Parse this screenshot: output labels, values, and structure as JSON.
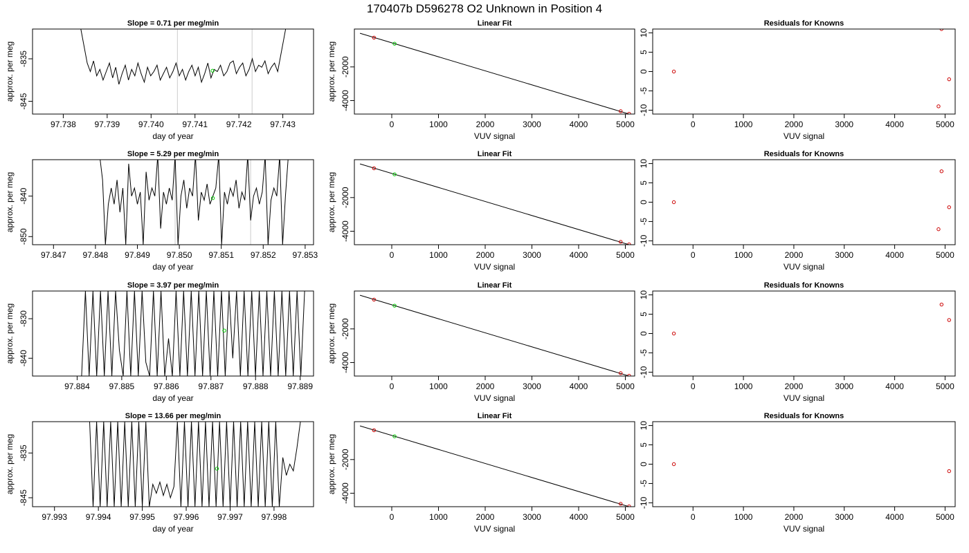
{
  "figure": {
    "title": "170407b     D596278   O2 Unknown in Position  4"
  },
  "colors": {
    "line": "#000000",
    "known": "#cc0000",
    "unknown": "#00cc00",
    "vline": "#cccccc",
    "box": "#000000"
  },
  "rows": [
    {
      "trace": {
        "title": "Slope =  0.71  per meg/min",
        "xlabel": "day of year",
        "ylabel": "approx. per meg",
        "xlim": [
          97.7373,
          97.7437
        ],
        "ylim": [
          -848.0,
          -828.0
        ],
        "xticks": [
          "97.738",
          "97.739",
          "97.740",
          "97.741",
          "97.742",
          "97.743"
        ],
        "yticks": [
          "-835",
          "-845"
        ],
        "vlines": [
          97.7406,
          97.7423
        ],
        "unknown_point": [
          97.7414,
          -837.8
        ],
        "x_start": 97.7384,
        "x_end": 97.7431,
        "y_base": -838.5,
        "amp": 2.0,
        "edge": "both",
        "series": [
          -828.0,
          -832.0,
          -836.0,
          -838.0,
          -835.5,
          -839.0,
          -837.5,
          -840.0,
          -838.0,
          -836.0,
          -839.5,
          -837.0,
          -841.0,
          -838.5,
          -836.5,
          -840.0,
          -837.5,
          -839.0,
          -836.0,
          -838.5,
          -840.5,
          -837.0,
          -839.0,
          -838.0,
          -836.5,
          -840.0,
          -838.5,
          -837.0,
          -839.5,
          -838.0,
          -836.0,
          -839.0,
          -837.5,
          -840.0,
          -838.0,
          -836.5,
          -839.0,
          -837.0,
          -840.5,
          -838.5,
          -836.0,
          -839.5,
          -837.5,
          -838.0,
          -836.5,
          -839.0,
          -838.0,
          -836.0,
          -835.5,
          -838.5,
          -837.0,
          -836.0,
          -839.0,
          -837.5,
          -835.0,
          -838.0,
          -836.5,
          -837.0,
          -835.5,
          -838.5,
          -837.0,
          -836.0,
          -838.0,
          -834.0,
          -830.0,
          -826.0
        ]
      },
      "fit": {
        "title": "Linear Fit",
        "xlabel": "VUV signal",
        "ylabel": "approx. per meg",
        "xlim": [
          -800,
          5200
        ],
        "ylim": [
          -4800,
          250
        ],
        "xticks": [
          "0",
          "1000",
          "2000",
          "3000",
          "4000",
          "5000"
        ],
        "yticks": [
          "-2000",
          "-4000"
        ],
        "line": [
          [
            -680,
            0
          ],
          [
            5080,
            -4800
          ]
        ],
        "knowns": [
          [
            -380,
            -260
          ],
          [
            4900,
            -4630
          ],
          [
            5080,
            -4780
          ]
        ],
        "unknown": [
          60,
          -620
        ]
      },
      "resid": {
        "title": "Residuals for Knowns",
        "xlabel": "VUV signal",
        "ylabel": "",
        "xlim": [
          -800,
          5200
        ],
        "ylim": [
          -11,
          11
        ],
        "xticks": [
          "0",
          "1000",
          "2000",
          "3000",
          "4000",
          "5000"
        ],
        "yticks": [
          "10",
          "5",
          "0",
          "-5",
          "-10"
        ],
        "points": [
          [
            -380,
            0
          ],
          [
            4930,
            11
          ],
          [
            5080,
            -2
          ],
          [
            4870,
            -9
          ]
        ]
      }
    },
    {
      "trace": {
        "title": "Slope =  5.29  per meg/min",
        "xlabel": "day of year",
        "ylabel": "approx. per meg",
        "xlim": [
          97.8465,
          97.8532
        ],
        "ylim": [
          -852.0,
          -831.0
        ],
        "xticks": [
          "97.847",
          "97.848",
          "97.849",
          "97.850",
          "97.851",
          "97.852",
          "97.853"
        ],
        "yticks": [
          "-840",
          "-850"
        ],
        "vlines": [
          97.8499,
          97.8517
        ],
        "unknown_point": [
          97.8508,
          -840.5
        ],
        "x_start": 97.8481,
        "x_end": 97.8526,
        "y_base": -840.0,
        "amp": 3.0,
        "edge": "both",
        "series": [
          -830.0,
          -836.0,
          -852.0,
          -842.0,
          -838.0,
          -842.0,
          -836.0,
          -844.0,
          -838.0,
          -852.0,
          -832.0,
          -840.0,
          -838.0,
          -842.0,
          -839.0,
          -852.0,
          -834.0,
          -841.0,
          -838.0,
          -840.0,
          -830.0,
          -848.0,
          -839.0,
          -842.0,
          -838.0,
          -841.0,
          -830.0,
          -852.0,
          -840.0,
          -836.0,
          -843.0,
          -838.0,
          -840.0,
          -830.0,
          -846.0,
          -839.0,
          -841.0,
          -837.0,
          -842.0,
          -840.0,
          -838.0,
          -830.0,
          -852.0,
          -839.0,
          -842.0,
          -838.0,
          -840.0,
          -836.0,
          -843.0,
          -839.0,
          -841.0,
          -830.0,
          -846.0,
          -840.0,
          -838.0,
          -842.0,
          -839.0,
          -830.0,
          -852.0,
          -841.0,
          -838.0,
          -840.0,
          -830.0,
          -852.0,
          -840.0,
          -830.0
        ]
      },
      "fit": {
        "title": "Linear Fit",
        "xlabel": "VUV signal",
        "ylabel": "approx. per meg",
        "xlim": [
          -800,
          5200
        ],
        "ylim": [
          -4800,
          250
        ],
        "xticks": [
          "0",
          "1000",
          "2000",
          "3000",
          "4000",
          "5000"
        ],
        "yticks": [
          "-2000",
          "-4000"
        ],
        "line": [
          [
            -680,
            0
          ],
          [
            5080,
            -4800
          ]
        ],
        "knowns": [
          [
            -380,
            -260
          ],
          [
            4900,
            -4630
          ],
          [
            5080,
            -4780
          ]
        ],
        "unknown": [
          60,
          -620
        ]
      },
      "resid": {
        "title": "Residuals for Knowns",
        "xlabel": "VUV signal",
        "ylabel": "",
        "xlim": [
          -800,
          5200
        ],
        "ylim": [
          -11,
          11
        ],
        "xticks": [
          "0",
          "1000",
          "2000",
          "3000",
          "4000",
          "5000"
        ],
        "yticks": [
          "10",
          "5",
          "0",
          "-5",
          "-10"
        ],
        "points": [
          [
            -380,
            0
          ],
          [
            4930,
            8
          ],
          [
            5080,
            -1.3
          ],
          [
            4870,
            -7
          ]
        ]
      }
    },
    {
      "trace": {
        "title": "Slope =  3.97  per meg/min",
        "xlabel": "day of year",
        "ylabel": "approx. per meg",
        "xlim": [
          97.883,
          97.8893
        ],
        "ylim": [
          -844.5,
          -823.0
        ],
        "xticks": [
          "97.884",
          "97.885",
          "97.886",
          "97.887",
          "97.888",
          "97.889"
        ],
        "yticks": [
          "-830",
          "-840"
        ],
        "vlines": [],
        "unknown_point": [
          97.8873,
          -833.0
        ],
        "x_start": 97.8841,
        "x_end": 97.8891,
        "y_base": -834.0,
        "amp": 10.0,
        "edge": "none",
        "series": [
          -844.5,
          -823.0,
          -844.5,
          -823.0,
          -844.5,
          -823.0,
          -844.5,
          -823.0,
          -844.5,
          -823.0,
          -838.0,
          -844.5,
          -823.0,
          -844.5,
          -823.0,
          -844.5,
          -823.0,
          -841.0,
          -844.5,
          -823.0,
          -844.5,
          -823.0,
          -844.5,
          -835.0,
          -844.5,
          -823.0,
          -844.5,
          -823.0,
          -844.5,
          -823.0,
          -844.5,
          -823.0,
          -844.5,
          -823.0,
          -844.5,
          -823.0,
          -844.5,
          -823.0,
          -844.5,
          -823.0,
          -840.0,
          -823.0,
          -844.5,
          -823.0,
          -844.5,
          -823.0,
          -844.5,
          -823.0,
          -844.5,
          -823.0,
          -844.5,
          -823.0,
          -844.5,
          -823.0,
          -844.5,
          -823.0,
          -844.5,
          -823.0,
          -844.5,
          -823.0
        ]
      },
      "fit": {
        "title": "Linear Fit",
        "xlabel": "VUV signal",
        "ylabel": "approx. per meg",
        "xlim": [
          -800,
          5200
        ],
        "ylim": [
          -4800,
          250
        ],
        "xticks": [
          "0",
          "1000",
          "2000",
          "3000",
          "4000",
          "5000"
        ],
        "yticks": [
          "-2000",
          "-4000"
        ],
        "line": [
          [
            -680,
            0
          ],
          [
            5080,
            -4800
          ]
        ],
        "knowns": [
          [
            -380,
            -260
          ],
          [
            4900,
            -4630
          ],
          [
            5080,
            -4780
          ]
        ],
        "unknown": [
          60,
          -620
        ]
      },
      "resid": {
        "title": "Residuals for Knowns",
        "xlabel": "VUV signal",
        "ylabel": "",
        "xlim": [
          -800,
          5200
        ],
        "ylim": [
          -11,
          11
        ],
        "xticks": [
          "0",
          "1000",
          "2000",
          "3000",
          "4000",
          "5000"
        ],
        "yticks": [
          "10",
          "5",
          "0",
          "-5",
          "-10"
        ],
        "points": [
          [
            -380,
            0
          ],
          [
            4930,
            7.5
          ],
          [
            5080,
            3.5
          ]
        ]
      }
    },
    {
      "trace": {
        "title": "Slope =  13.66  per meg/min",
        "xlabel": "day of year",
        "ylabel": "approx. per meg",
        "xlim": [
          97.9925,
          97.9989
        ],
        "ylim": [
          -847.0,
          -828.0
        ],
        "xticks": [
          "97.993",
          "97.994",
          "97.995",
          "97.996",
          "97.997",
          "97.998"
        ],
        "yticks": [
          "-835",
          "-845"
        ],
        "vlines": [],
        "unknown_point": [
          97.9967,
          -838.5
        ],
        "x_start": 97.9938,
        "x_end": 97.9986,
        "y_base": -838.0,
        "amp": 9.0,
        "edge": "right",
        "series": [
          -828.0,
          -847.0,
          -828.0,
          -847.0,
          -828.0,
          -847.0,
          -828.0,
          -847.0,
          -828.0,
          -847.0,
          -828.0,
          -847.0,
          -828.0,
          -847.0,
          -828.0,
          -847.0,
          -828.0,
          -847.0,
          -842.0,
          -844.0,
          -841.5,
          -844.5,
          -842.0,
          -845.0,
          -842.5,
          -828.0,
          -847.0,
          -828.0,
          -847.0,
          -828.0,
          -847.0,
          -828.0,
          -847.0,
          -828.0,
          -847.0,
          -828.0,
          -847.0,
          -828.0,
          -847.0,
          -828.0,
          -847.0,
          -828.0,
          -847.0,
          -828.0,
          -847.0,
          -828.0,
          -847.0,
          -828.0,
          -847.0,
          -828.0,
          -847.0,
          -828.0,
          -847.0,
          -828.0,
          -847.0,
          -836.0,
          -840.0,
          -837.5,
          -839.0,
          -834.0,
          -828.0
        ]
      },
      "fit": {
        "title": "Linear Fit",
        "xlabel": "VUV signal",
        "ylabel": "approx. per meg",
        "xlim": [
          -800,
          5200
        ],
        "ylim": [
          -4800,
          250
        ],
        "xticks": [
          "0",
          "1000",
          "2000",
          "3000",
          "4000",
          "5000"
        ],
        "yticks": [
          "-2000",
          "-4000"
        ],
        "line": [
          [
            -680,
            0
          ],
          [
            5080,
            -4800
          ]
        ],
        "knowns": [
          [
            -380,
            -260
          ],
          [
            4900,
            -4630
          ],
          [
            5080,
            -4780
          ]
        ],
        "unknown": [
          60,
          -620
        ]
      },
      "resid": {
        "title": "Residuals for Knowns",
        "xlabel": "VUV signal",
        "ylabel": "",
        "xlim": [
          -800,
          5200
        ],
        "ylim": [
          -11,
          11
        ],
        "xticks": [
          "0",
          "1000",
          "2000",
          "3000",
          "4000",
          "5000"
        ],
        "yticks": [
          "10",
          "5",
          "0",
          "-5",
          "-10"
        ],
        "points": [
          [
            -380,
            0
          ],
          [
            5080,
            -1.8
          ]
        ]
      }
    }
  ]
}
